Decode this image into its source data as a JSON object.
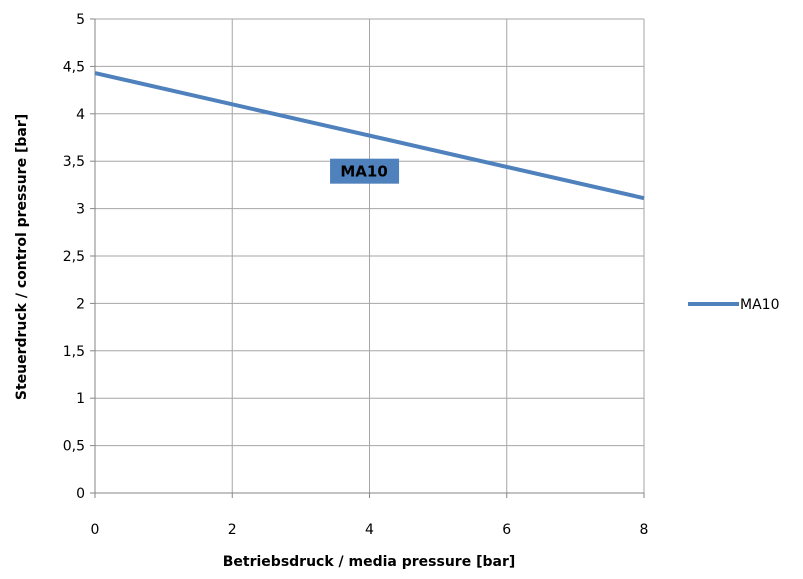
{
  "chart_data": {
    "type": "line",
    "xlabel": "Betriebsdruck / media pressure [bar]",
    "ylabel": "Steuerdruck / control pressure [bar]",
    "xlim": [
      0,
      8
    ],
    "ylim": [
      0,
      5
    ],
    "x_ticks": [
      0,
      2,
      4,
      6,
      8
    ],
    "x_tick_labels": [
      "0",
      "2",
      "4",
      "6",
      "8"
    ],
    "y_ticks": [
      0,
      0.5,
      1,
      1.5,
      2,
      2.5,
      3,
      3.5,
      4,
      4.5,
      5
    ],
    "y_tick_labels": [
      "0",
      "0,5",
      "1",
      "1,5",
      "2",
      "2,5",
      "3",
      "3,5",
      "4",
      "4,5",
      "5"
    ],
    "grid": true,
    "legend_position": "right",
    "series": [
      {
        "name": "MA10",
        "color": "#4f81bd",
        "points": [
          {
            "x": 0,
            "y": 4.43
          },
          {
            "x": 8,
            "y": 3.11
          }
        ]
      }
    ],
    "annotations": [
      {
        "text": "MA10",
        "x": 3.95,
        "y": 3.4,
        "background": "#4f81bd"
      }
    ]
  }
}
